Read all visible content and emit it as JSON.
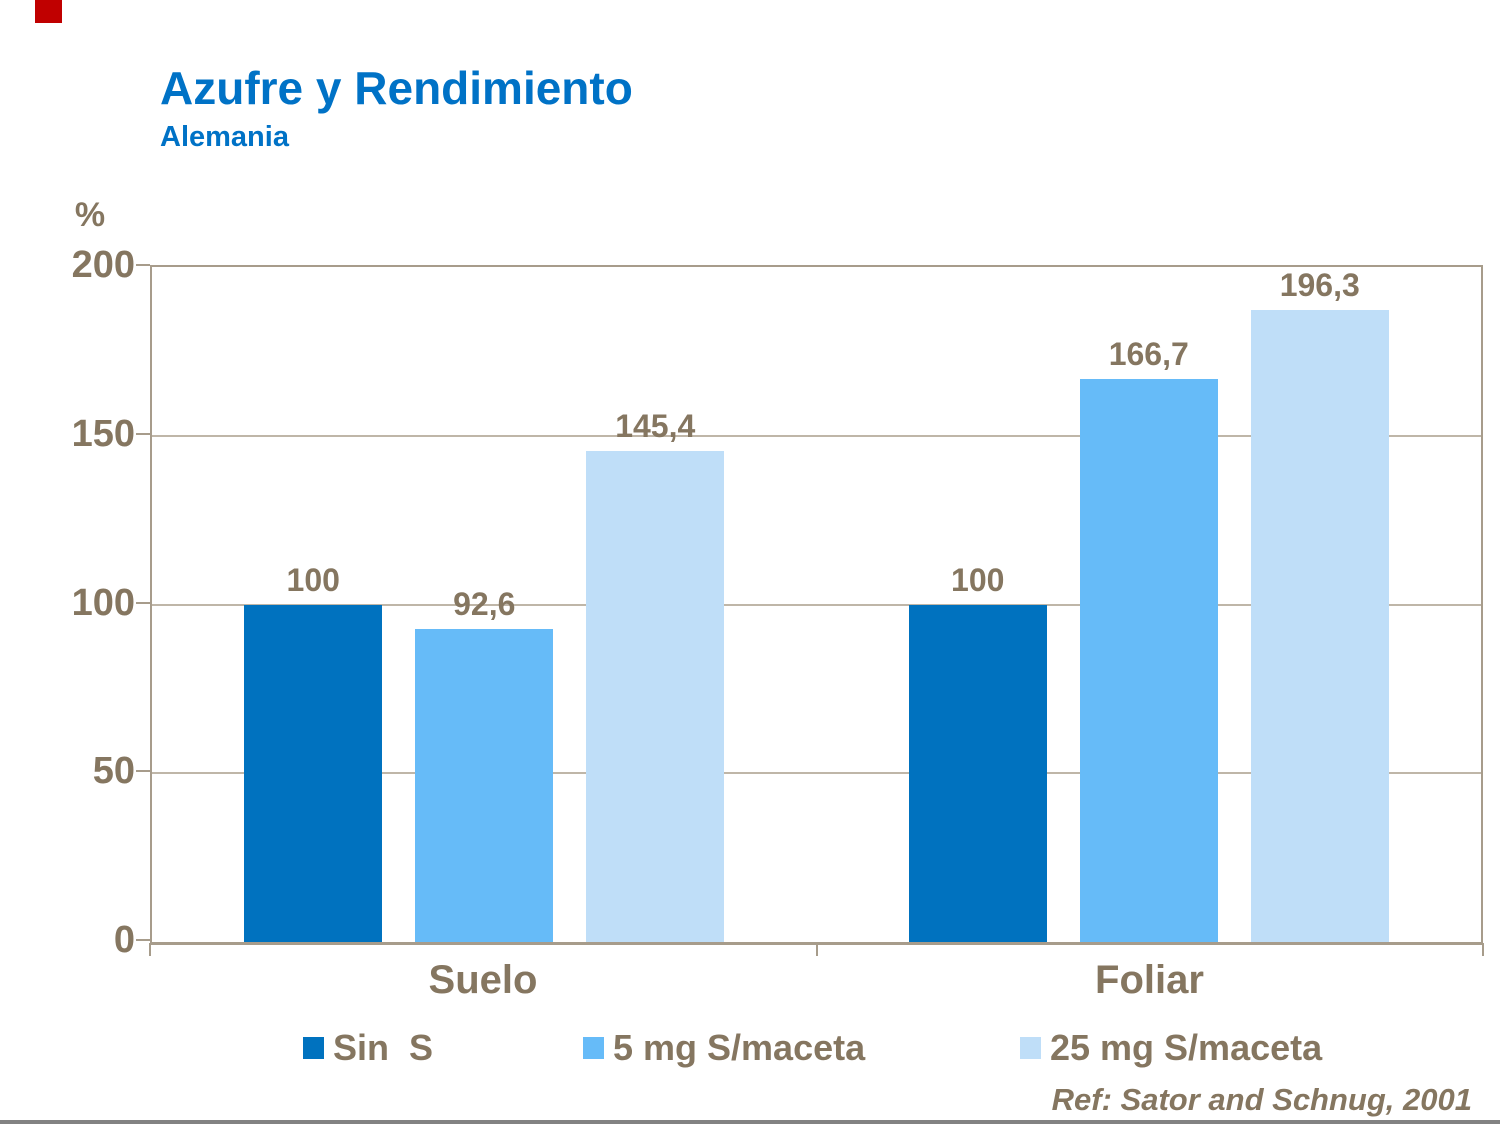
{
  "slide": {
    "marker_color": "#C00000"
  },
  "chart_data": {
    "type": "bar",
    "title": "Azufre y Rendimiento",
    "subtitle": "Alemania",
    "ylabel": "%",
    "xlabel": "",
    "ylim": [
      0,
      200
    ],
    "yticks": [
      0,
      50,
      100,
      150,
      200
    ],
    "grid": "horizontal",
    "legend_position": "bottom",
    "categories": [
      "Suelo",
      "Foliar"
    ],
    "series": [
      {
        "name": "Sin  S",
        "color": "#0072BF",
        "values": [
          100,
          100
        ],
        "labels": [
          "100",
          "100"
        ]
      },
      {
        "name": "5 mg S/maceta",
        "color": "#66BBF8",
        "values": [
          92.6,
          166.7
        ],
        "labels": [
          "92,6",
          "166,7"
        ]
      },
      {
        "name": "25 mg S/maceta",
        "color": "#BFDEF8",
        "values": [
          145.4,
          196.3
        ],
        "labels": [
          "145,4",
          "196,3"
        ]
      }
    ]
  },
  "footer": {
    "reference": "Ref: Sator and Schnug, 2001"
  },
  "colors": {
    "title_blue": "#0072C6",
    "chart_text": "#857660",
    "axis_border": "#A79C8B",
    "gridline": "#BFB6A8",
    "footer_rule": "#828282"
  }
}
